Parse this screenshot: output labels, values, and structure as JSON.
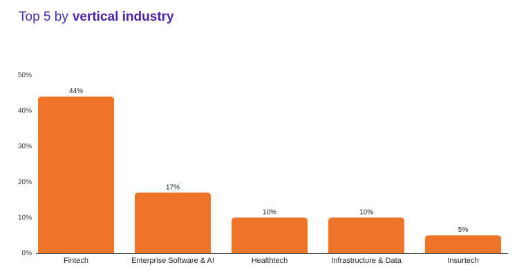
{
  "header": {
    "title_lead": "Top 5 by",
    "title_emphasis": "vertical industry"
  },
  "colors": {
    "bar": "#ee7427",
    "title": "#4b2aa6",
    "axis": "#555555"
  },
  "chart_data": {
    "type": "bar",
    "categories": [
      "Fintech",
      "Enterprise Software & AI",
      "Healthtech",
      "Infrastructure & Data",
      "Insurtech"
    ],
    "values": [
      44,
      17,
      10,
      10,
      5
    ],
    "data_labels": [
      "44%",
      "17%",
      "10%",
      "10%",
      "5%"
    ],
    "y_ticks": [
      0,
      10,
      20,
      30,
      40,
      50
    ],
    "y_tick_labels": [
      "0%",
      "10%",
      "20%",
      "30%",
      "40%",
      "50%"
    ],
    "ylim": [
      0,
      50
    ],
    "grid": false,
    "legend": "none"
  }
}
